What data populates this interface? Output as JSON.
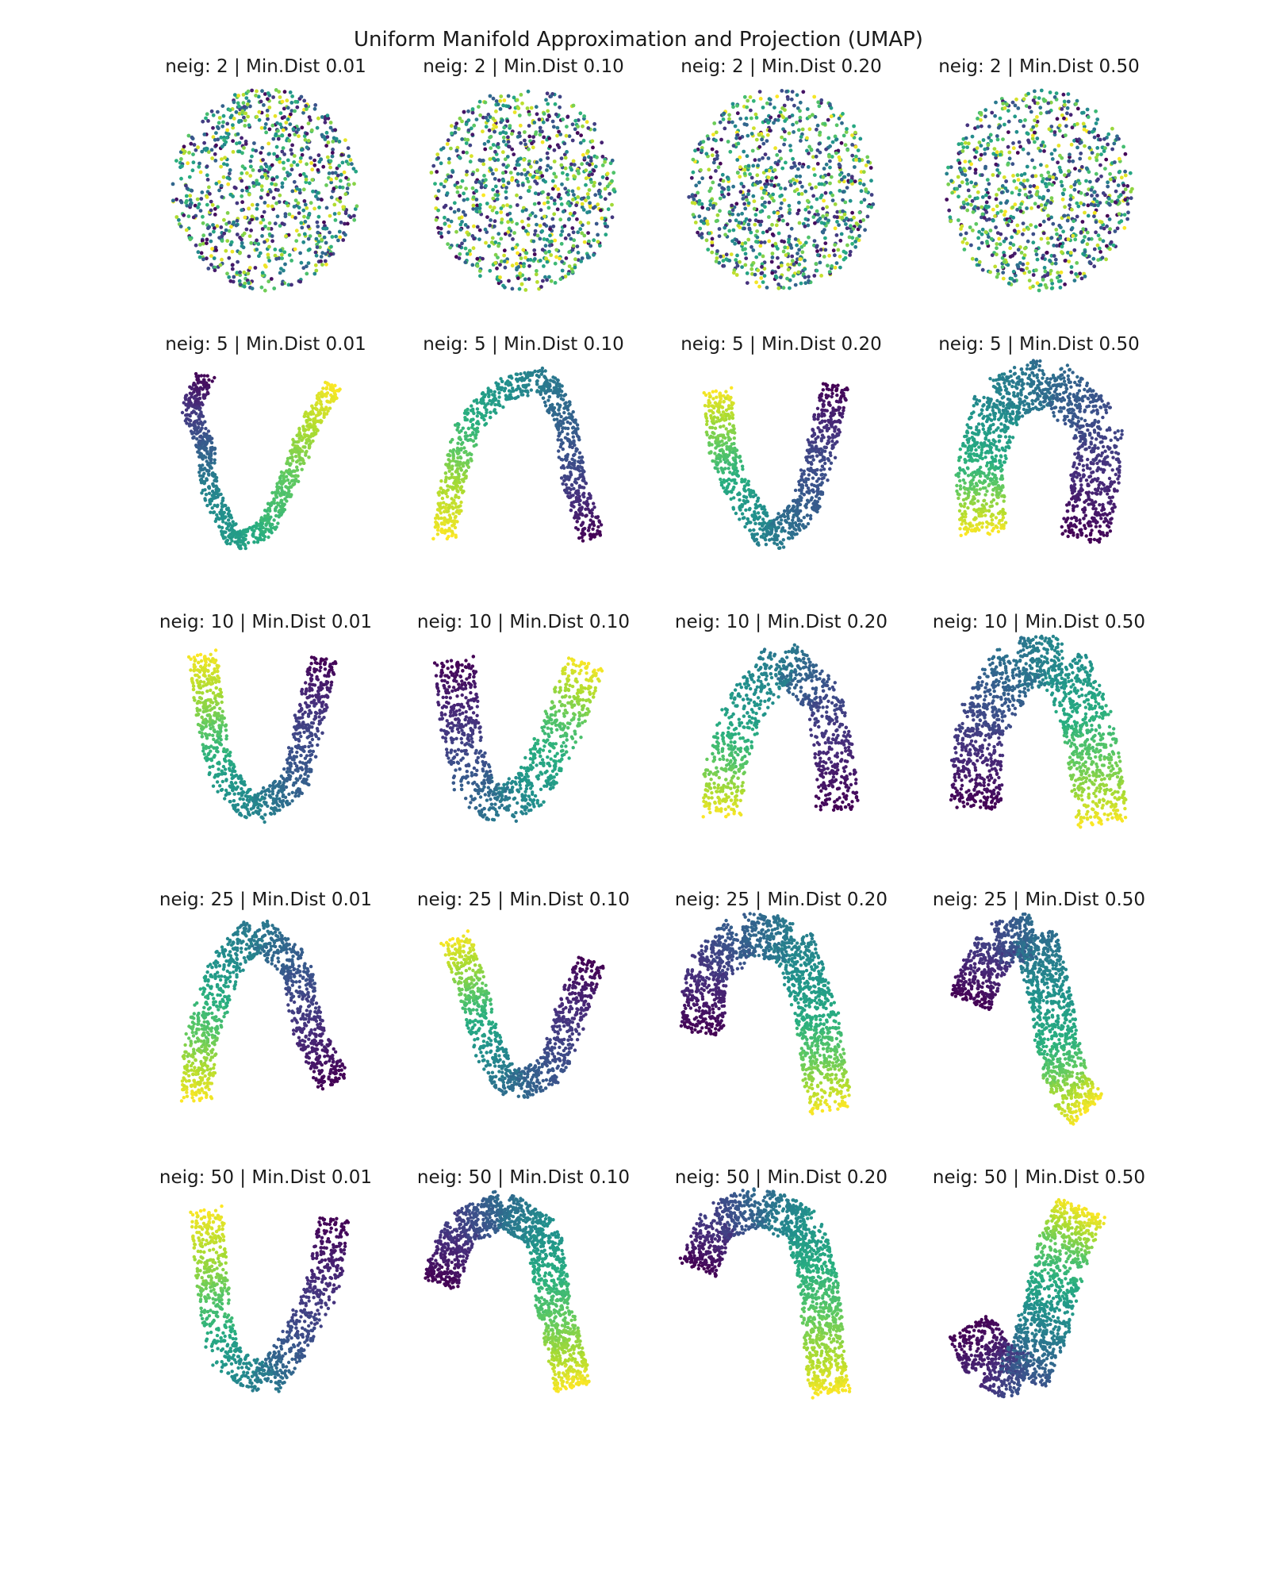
{
  "title": "Uniform Manifold Approximation and Projection (UMAP)",
  "colormap": {
    "name": "viridis",
    "stops": [
      "#440154",
      "#472d7b",
      "#3b528b",
      "#2c728e",
      "#21918c",
      "#28ae80",
      "#5ec962",
      "#addc30",
      "#fde725"
    ]
  },
  "chart_data": {
    "type": "scatter",
    "grid": false,
    "axes": "off",
    "n_neighbors": [
      2,
      5,
      10,
      25,
      50
    ],
    "min_dist": [
      "0.01",
      "0.10",
      "0.20",
      "0.50"
    ],
    "panels": [
      {
        "title": "neig: 2 | Min.Dist 0.01",
        "shape": "disc"
      },
      {
        "title": "neig: 2 | Min.Dist 0.10",
        "shape": "disc"
      },
      {
        "title": "neig: 2 | Min.Dist 0.20",
        "shape": "disc"
      },
      {
        "title": "neig: 2 | Min.Dist 0.50",
        "shape": "disc"
      },
      {
        "title": "neig: 5 | Min.Dist 0.01",
        "shape": "path",
        "path": [
          [
            0.2,
            0.05,
            0.0
          ],
          [
            0.12,
            0.22,
            0.15
          ],
          [
            0.2,
            0.4,
            0.3
          ],
          [
            0.22,
            0.62,
            0.45
          ],
          [
            0.35,
            0.86,
            0.55
          ],
          [
            0.5,
            0.8,
            0.65
          ],
          [
            0.62,
            0.55,
            0.75
          ],
          [
            0.72,
            0.3,
            0.88
          ],
          [
            0.85,
            0.1,
            1.0
          ]
        ],
        "width": 0.09,
        "gaps": true
      },
      {
        "title": "neig: 5 | Min.Dist 0.10",
        "shape": "path",
        "path": [
          [
            0.1,
            0.85,
            1.0
          ],
          [
            0.15,
            0.55,
            0.85
          ],
          [
            0.22,
            0.3,
            0.65
          ],
          [
            0.4,
            0.12,
            0.5
          ],
          [
            0.62,
            0.08,
            0.4
          ],
          [
            0.72,
            0.3,
            0.3
          ],
          [
            0.75,
            0.55,
            0.2
          ],
          [
            0.85,
            0.85,
            0.0
          ]
        ],
        "width": 0.12,
        "gaps": true
      },
      {
        "title": "neig: 5 | Min.Dist 0.20",
        "shape": "path",
        "path": [
          [
            0.18,
            0.12,
            1.0
          ],
          [
            0.2,
            0.4,
            0.75
          ],
          [
            0.3,
            0.65,
            0.55
          ],
          [
            0.45,
            0.85,
            0.42
          ],
          [
            0.62,
            0.7,
            0.3
          ],
          [
            0.7,
            0.42,
            0.2
          ],
          [
            0.78,
            0.1,
            0.0
          ]
        ],
        "width": 0.14,
        "gaps": true
      },
      {
        "title": "neig: 5 | Min.Dist 0.50",
        "shape": "path",
        "path": [
          [
            0.22,
            0.82,
            1.0
          ],
          [
            0.2,
            0.5,
            0.65
          ],
          [
            0.3,
            0.18,
            0.45
          ],
          [
            0.55,
            0.08,
            0.35
          ],
          [
            0.8,
            0.3,
            0.22
          ],
          [
            0.78,
            0.62,
            0.1
          ],
          [
            0.72,
            0.85,
            0.0
          ]
        ],
        "width": 0.24,
        "gaps": false
      },
      {
        "title": "neig: 10 | Min.Dist 0.01",
        "shape": "path",
        "path": [
          [
            0.18,
            0.05,
            1.0
          ],
          [
            0.22,
            0.35,
            0.8
          ],
          [
            0.28,
            0.65,
            0.55
          ],
          [
            0.45,
            0.82,
            0.45
          ],
          [
            0.65,
            0.68,
            0.3
          ],
          [
            0.72,
            0.38,
            0.18
          ],
          [
            0.8,
            0.08,
            0.0
          ]
        ],
        "width": 0.14,
        "gaps": true
      },
      {
        "title": "neig: 10 | Min.Dist 0.10",
        "shape": "path",
        "path": [
          [
            0.15,
            0.08,
            0.0
          ],
          [
            0.18,
            0.4,
            0.15
          ],
          [
            0.25,
            0.7,
            0.3
          ],
          [
            0.4,
            0.8,
            0.4
          ],
          [
            0.55,
            0.7,
            0.52
          ],
          [
            0.7,
            0.4,
            0.72
          ],
          [
            0.82,
            0.1,
            1.0
          ]
        ],
        "width": 0.2,
        "gaps": true
      },
      {
        "title": "neig: 10 | Min.Dist 0.20",
        "shape": "path",
        "path": [
          [
            0.2,
            0.85,
            1.0
          ],
          [
            0.22,
            0.6,
            0.75
          ],
          [
            0.3,
            0.35,
            0.55
          ],
          [
            0.5,
            0.08,
            0.4
          ],
          [
            0.72,
            0.28,
            0.22
          ],
          [
            0.78,
            0.62,
            0.08
          ],
          [
            0.78,
            0.82,
            0.0
          ]
        ],
        "width": 0.2,
        "gaps": true
      },
      {
        "title": "neig: 10 | Min.Dist 0.50",
        "shape": "path",
        "path": [
          [
            0.18,
            0.8,
            0.0
          ],
          [
            0.2,
            0.4,
            0.2
          ],
          [
            0.4,
            0.1,
            0.38
          ],
          [
            0.62,
            0.1,
            0.48
          ],
          [
            0.75,
            0.4,
            0.65
          ],
          [
            0.8,
            0.72,
            0.85
          ],
          [
            0.82,
            0.88,
            1.0
          ]
        ],
        "width": 0.26,
        "gaps": false
      },
      {
        "title": "neig: 25 | Min.Dist 0.01",
        "shape": "path",
        "path": [
          [
            0.15,
            0.88,
            1.0
          ],
          [
            0.18,
            0.55,
            0.75
          ],
          [
            0.3,
            0.22,
            0.5
          ],
          [
            0.45,
            0.06,
            0.4
          ],
          [
            0.65,
            0.22,
            0.28
          ],
          [
            0.72,
            0.55,
            0.12
          ],
          [
            0.85,
            0.8,
            0.0
          ]
        ],
        "width": 0.16,
        "gaps": true
      },
      {
        "title": "neig: 25 | Min.Dist 0.10",
        "shape": "path",
        "path": [
          [
            0.15,
            0.08,
            1.0
          ],
          [
            0.25,
            0.35,
            0.75
          ],
          [
            0.32,
            0.62,
            0.5
          ],
          [
            0.45,
            0.82,
            0.35
          ],
          [
            0.65,
            0.72,
            0.25
          ],
          [
            0.75,
            0.42,
            0.12
          ],
          [
            0.85,
            0.2,
            0.0
          ]
        ],
        "width": 0.15,
        "gaps": true
      },
      {
        "title": "neig: 25 | Min.Dist 0.20",
        "shape": "path",
        "path": [
          [
            0.1,
            0.55,
            0.0
          ],
          [
            0.12,
            0.25,
            0.15
          ],
          [
            0.3,
            0.08,
            0.3
          ],
          [
            0.55,
            0.1,
            0.42
          ],
          [
            0.68,
            0.45,
            0.6
          ],
          [
            0.72,
            0.75,
            0.82
          ],
          [
            0.75,
            0.92,
            1.0
          ]
        ],
        "width": 0.22,
        "gaps": false
      },
      {
        "title": "neig: 25 | Min.Dist 0.50",
        "shape": "path",
        "path": [
          [
            0.15,
            0.4,
            0.0
          ],
          [
            0.28,
            0.12,
            0.2
          ],
          [
            0.48,
            0.08,
            0.35
          ],
          [
            0.55,
            0.35,
            0.5
          ],
          [
            0.6,
            0.62,
            0.65
          ],
          [
            0.65,
            0.82,
            0.85
          ],
          [
            0.75,
            0.92,
            1.0
          ]
        ],
        "width": 0.22,
        "gaps": false
      },
      {
        "title": "neig: 50 | Min.Dist 0.01",
        "shape": "path",
        "path": [
          [
            0.2,
            0.05,
            1.0
          ],
          [
            0.23,
            0.4,
            0.8
          ],
          [
            0.28,
            0.75,
            0.55
          ],
          [
            0.5,
            0.9,
            0.4
          ],
          [
            0.65,
            0.7,
            0.25
          ],
          [
            0.8,
            0.4,
            0.12
          ],
          [
            0.85,
            0.1,
            0.0
          ]
        ],
        "width": 0.16,
        "gaps": true
      },
      {
        "title": "neig: 50 | Min.Dist 0.10",
        "shape": "path",
        "path": [
          [
            0.08,
            0.42,
            0.0
          ],
          [
            0.18,
            0.15,
            0.18
          ],
          [
            0.4,
            0.06,
            0.35
          ],
          [
            0.6,
            0.18,
            0.5
          ],
          [
            0.65,
            0.5,
            0.7
          ],
          [
            0.72,
            0.78,
            0.88
          ],
          [
            0.75,
            0.92,
            1.0
          ]
        ],
        "width": 0.18,
        "gaps": false
      },
      {
        "title": "neig: 50 | Min.Dist 0.20",
        "shape": "path",
        "path": [
          [
            0.08,
            0.35,
            0.0
          ],
          [
            0.18,
            0.12,
            0.18
          ],
          [
            0.4,
            0.04,
            0.35
          ],
          [
            0.62,
            0.15,
            0.52
          ],
          [
            0.7,
            0.48,
            0.7
          ],
          [
            0.72,
            0.78,
            0.88
          ],
          [
            0.75,
            0.95,
            1.0
          ]
        ],
        "width": 0.2,
        "gaps": false
      },
      {
        "title": "neig: 50 | Min.Dist 0.50",
        "shape": "path",
        "path": [
          [
            0.15,
            0.62,
            0.0
          ],
          [
            0.25,
            0.8,
            0.1
          ],
          [
            0.42,
            0.88,
            0.25
          ],
          [
            0.55,
            0.55,
            0.5
          ],
          [
            0.62,
            0.25,
            0.75
          ],
          [
            0.72,
            0.05,
            1.0
          ]
        ],
        "width": 0.26,
        "gaps": false
      }
    ]
  }
}
